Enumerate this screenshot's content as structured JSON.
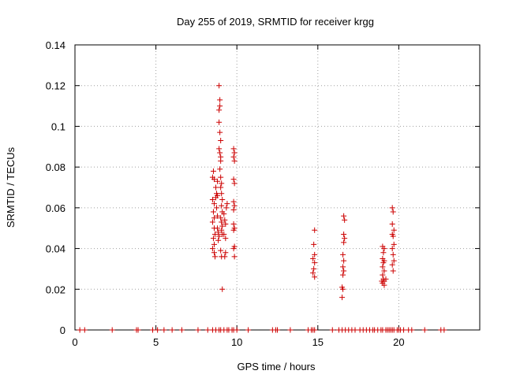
{
  "chart_data": {
    "type": "scatter",
    "title": "Day 255 of 2019, SRMTID for receiver krgg",
    "xlabel": "GPS time / hours",
    "ylabel": "SRMTID / TECUs",
    "xlim": [
      0,
      25
    ],
    "ylim": [
      0,
      0.14
    ],
    "x_ticks": [
      0,
      5,
      10,
      15,
      20
    ],
    "x_tick_labels": [
      "0",
      "5",
      "10",
      "15",
      "20"
    ],
    "y_ticks": [
      0,
      0.02,
      0.04,
      0.06,
      0.08,
      0.1,
      0.12,
      0.14
    ],
    "y_tick_labels": [
      "0",
      "0.02",
      "0.04",
      "0.06",
      "0.08",
      "0.1",
      "0.12",
      "0.14"
    ],
    "grid": true,
    "marker": "+",
    "color": "#cc0000",
    "series": [
      {
        "name": "SRMTID",
        "points": [
          [
            0.3,
            0
          ],
          [
            0.6,
            0
          ],
          [
            2.3,
            0
          ],
          [
            3.8,
            0
          ],
          [
            3.9,
            0
          ],
          [
            4.8,
            0
          ],
          [
            5.1,
            0
          ],
          [
            5.5,
            0
          ],
          [
            6.0,
            0
          ],
          [
            6.6,
            0
          ],
          [
            7.6,
            0
          ],
          [
            8.2,
            0
          ],
          [
            8.5,
            0
          ],
          [
            8.7,
            0
          ],
          [
            8.9,
            0
          ],
          [
            9.0,
            0
          ],
          [
            9.2,
            0
          ],
          [
            9.4,
            0
          ],
          [
            9.5,
            0
          ],
          [
            9.7,
            0
          ],
          [
            9.8,
            0
          ],
          [
            10.0,
            0
          ],
          [
            10.7,
            0
          ],
          [
            12.2,
            0
          ],
          [
            12.4,
            0
          ],
          [
            12.5,
            0
          ],
          [
            13.3,
            0
          ],
          [
            14.4,
            0
          ],
          [
            14.6,
            0
          ],
          [
            14.7,
            0
          ],
          [
            14.8,
            0
          ],
          [
            15.9,
            0
          ],
          [
            16.3,
            0
          ],
          [
            16.5,
            0
          ],
          [
            16.7,
            0
          ],
          [
            16.9,
            0
          ],
          [
            17.1,
            0
          ],
          [
            17.3,
            0
          ],
          [
            17.6,
            0
          ],
          [
            17.8,
            0
          ],
          [
            18.0,
            0
          ],
          [
            18.2,
            0
          ],
          [
            18.4,
            0
          ],
          [
            18.5,
            0
          ],
          [
            18.7,
            0
          ],
          [
            18.9,
            0
          ],
          [
            19.0,
            0
          ],
          [
            19.2,
            0
          ],
          [
            19.3,
            0
          ],
          [
            19.4,
            0
          ],
          [
            19.5,
            0
          ],
          [
            19.6,
            0
          ],
          [
            19.7,
            0
          ],
          [
            19.9,
            0
          ],
          [
            20.0,
            0
          ],
          [
            20.1,
            0
          ],
          [
            20.3,
            0
          ],
          [
            20.6,
            0
          ],
          [
            20.8,
            0
          ],
          [
            21.6,
            0
          ],
          [
            22.6,
            0
          ],
          [
            22.8,
            0
          ],
          [
            8.5,
            0.075
          ],
          [
            8.55,
            0.078
          ],
          [
            8.6,
            0.074
          ],
          [
            8.5,
            0.064
          ],
          [
            8.6,
            0.062
          ],
          [
            8.55,
            0.058
          ],
          [
            8.6,
            0.055
          ],
          [
            8.5,
            0.053
          ],
          [
            8.6,
            0.05
          ],
          [
            8.65,
            0.047
          ],
          [
            8.55,
            0.045
          ],
          [
            8.6,
            0.042
          ],
          [
            8.5,
            0.04
          ],
          [
            8.6,
            0.038
          ],
          [
            8.65,
            0.036
          ],
          [
            8.7,
            0.065
          ],
          [
            8.7,
            0.07
          ],
          [
            8.75,
            0.067
          ],
          [
            8.8,
            0.073
          ],
          [
            8.8,
            0.066
          ],
          [
            8.75,
            0.06
          ],
          [
            8.8,
            0.056
          ],
          [
            8.8,
            0.05
          ],
          [
            8.85,
            0.048
          ],
          [
            8.9,
            0.046
          ],
          [
            8.85,
            0.044
          ],
          [
            8.9,
            0.12
          ],
          [
            8.95,
            0.113
          ],
          [
            8.9,
            0.108
          ],
          [
            8.95,
            0.11
          ],
          [
            8.9,
            0.102
          ],
          [
            8.95,
            0.097
          ],
          [
            9.0,
            0.093
          ],
          [
            8.9,
            0.089
          ],
          [
            8.95,
            0.087
          ],
          [
            9.0,
            0.085
          ],
          [
            9.0,
            0.083
          ],
          [
            8.95,
            0.079
          ],
          [
            9.0,
            0.075
          ],
          [
            9.05,
            0.072
          ],
          [
            9.0,
            0.07
          ],
          [
            9.05,
            0.067
          ],
          [
            9.1,
            0.064
          ],
          [
            9.05,
            0.061
          ],
          [
            9.1,
            0.058
          ],
          [
            9.0,
            0.055
          ],
          [
            9.05,
            0.053
          ],
          [
            9.1,
            0.051
          ],
          [
            9.05,
            0.049
          ],
          [
            9.1,
            0.047
          ],
          [
            9.0,
            0.039
          ],
          [
            9.05,
            0.036
          ],
          [
            9.1,
            0.02
          ],
          [
            9.2,
            0.057
          ],
          [
            9.25,
            0.054
          ],
          [
            9.3,
            0.052
          ],
          [
            9.2,
            0.047
          ],
          [
            9.3,
            0.045
          ],
          [
            9.25,
            0.036
          ],
          [
            9.3,
            0.038
          ],
          [
            9.4,
            0.062
          ],
          [
            9.35,
            0.06
          ],
          [
            9.8,
            0.089
          ],
          [
            9.85,
            0.087
          ],
          [
            9.8,
            0.085
          ],
          [
            9.85,
            0.083
          ],
          [
            9.8,
            0.074
          ],
          [
            9.85,
            0.072
          ],
          [
            9.8,
            0.063
          ],
          [
            9.85,
            0.061
          ],
          [
            9.8,
            0.059
          ],
          [
            9.8,
            0.052
          ],
          [
            9.85,
            0.05
          ],
          [
            9.8,
            0.049
          ],
          [
            9.85,
            0.041
          ],
          [
            9.8,
            0.04
          ],
          [
            9.85,
            0.036
          ],
          [
            14.8,
            0.049
          ],
          [
            14.75,
            0.042
          ],
          [
            14.8,
            0.037
          ],
          [
            14.7,
            0.035
          ],
          [
            14.8,
            0.033
          ],
          [
            14.75,
            0.03
          ],
          [
            14.7,
            0.028
          ],
          [
            14.8,
            0.026
          ],
          [
            16.6,
            0.056
          ],
          [
            16.65,
            0.054
          ],
          [
            16.6,
            0.047
          ],
          [
            16.65,
            0.045
          ],
          [
            16.6,
            0.043
          ],
          [
            16.55,
            0.037
          ],
          [
            16.6,
            0.034
          ],
          [
            16.55,
            0.031
          ],
          [
            16.6,
            0.029
          ],
          [
            16.55,
            0.027
          ],
          [
            16.5,
            0.021
          ],
          [
            16.55,
            0.02
          ],
          [
            16.5,
            0.016
          ],
          [
            19.0,
            0.041
          ],
          [
            19.1,
            0.04
          ],
          [
            19.05,
            0.038
          ],
          [
            19.0,
            0.035
          ],
          [
            19.1,
            0.034
          ],
          [
            19.05,
            0.033
          ],
          [
            19.0,
            0.031
          ],
          [
            19.1,
            0.029
          ],
          [
            19.0,
            0.027
          ],
          [
            19.05,
            0.025
          ],
          [
            19.1,
            0.024
          ],
          [
            18.95,
            0.024
          ],
          [
            19.0,
            0.023
          ],
          [
            19.1,
            0.022
          ],
          [
            19.2,
            0.025
          ],
          [
            19.6,
            0.06
          ],
          [
            19.65,
            0.058
          ],
          [
            19.6,
            0.052
          ],
          [
            19.7,
            0.049
          ],
          [
            19.6,
            0.047
          ],
          [
            19.65,
            0.046
          ],
          [
            19.7,
            0.042
          ],
          [
            19.6,
            0.04
          ],
          [
            19.65,
            0.037
          ],
          [
            19.7,
            0.034
          ],
          [
            19.6,
            0.032
          ],
          [
            19.65,
            0.029
          ]
        ]
      }
    ]
  }
}
